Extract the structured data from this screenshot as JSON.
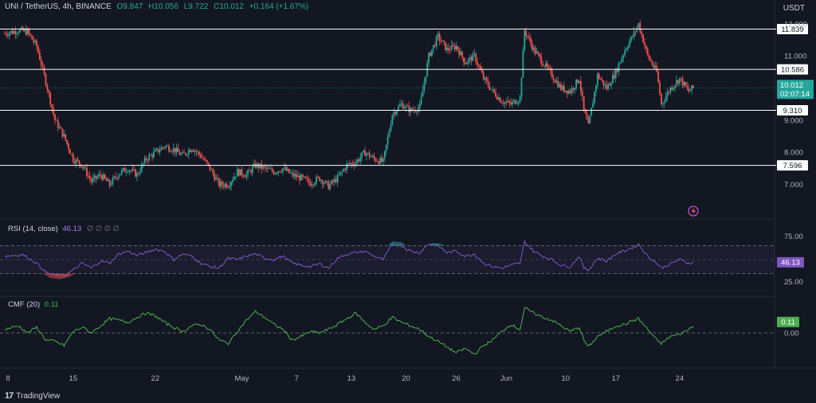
{
  "header": {
    "symbol": "UNI / TetherUS, 4h, BINANCE",
    "open": "O9.847",
    "high": "H10.056",
    "low": "L9.722",
    "close": "C10.012",
    "change": "+0.164 (+1.67%)"
  },
  "price_unit": "USDT",
  "current_price": "10.012",
  "countdown": "02:07:14",
  "brand": "TradingView",
  "colors": {
    "bg": "#131722",
    "up": "#26a69a",
    "down": "#ef5350",
    "rsi": "#7e57c2",
    "cmf": "#4caf50",
    "grid": "#2a2e39"
  },
  "rsi_panel": {
    "label": "RSI (14, close)",
    "value": "46.13",
    "settings": "∅ ∅ ∅ ∅",
    "ticks": [
      "75.00",
      "25.00"
    ],
    "value_badge": "46.13"
  },
  "cmf_panel": {
    "label": "CMF (20)",
    "value": "0.11",
    "ticks": [
      "0.00"
    ],
    "value_badge": "0.11"
  },
  "chart_data": {
    "type": "candlestick",
    "y_ticks": [
      "12.000",
      "11.000",
      "10.000",
      "9.000",
      "8.000",
      "7.000"
    ],
    "x_ticks": [
      "8",
      "15",
      "22",
      "May",
      "7",
      "13",
      "20",
      "26",
      "Jun",
      "10",
      "17",
      "24"
    ],
    "levels": [
      {
        "label": "11.839",
        "value": 11.839
      },
      {
        "label": "10.586",
        "value": 10.586
      },
      {
        "label": "9.310",
        "value": 9.31
      },
      {
        "label": "7.596",
        "value": 7.596
      }
    ],
    "ylim": [
      6.0,
      12.2
    ],
    "price_path": [
      [
        0,
        11.7
      ],
      [
        3,
        11.8
      ],
      [
        5,
        11.75
      ],
      [
        7,
        11.3
      ],
      [
        9,
        10.2
      ],
      [
        11,
        9.0
      ],
      [
        13,
        8.5
      ],
      [
        15,
        7.8
      ],
      [
        17,
        7.6
      ],
      [
        19,
        7.1
      ],
      [
        21,
        7.3
      ],
      [
        23,
        7.0
      ],
      [
        25,
        7.35
      ],
      [
        27,
        7.5
      ],
      [
        29,
        7.3
      ],
      [
        31,
        7.8
      ],
      [
        33,
        8.0
      ],
      [
        35,
        8.2
      ],
      [
        37,
        8.1
      ],
      [
        39,
        7.9
      ],
      [
        41,
        8.15
      ],
      [
        43,
        7.9
      ],
      [
        45,
        7.5
      ],
      [
        47,
        7.0
      ],
      [
        49,
        7.0
      ],
      [
        51,
        7.4
      ],
      [
        53,
        7.3
      ],
      [
        55,
        7.6
      ],
      [
        57,
        7.5
      ],
      [
        59,
        7.4
      ],
      [
        61,
        7.5
      ],
      [
        63,
        7.3
      ],
      [
        65,
        7.2
      ],
      [
        67,
        7.05
      ],
      [
        69,
        7.2
      ],
      [
        71,
        6.95
      ],
      [
        73,
        7.2
      ],
      [
        75,
        7.6
      ],
      [
        77,
        7.7
      ],
      [
        79,
        8.0
      ],
      [
        81,
        7.8
      ],
      [
        83,
        7.7
      ],
      [
        85,
        9.2
      ],
      [
        87,
        9.5
      ],
      [
        89,
        9.3
      ],
      [
        91,
        9.4
      ],
      [
        93,
        11.0
      ],
      [
        95,
        11.6
      ],
      [
        97,
        11.2
      ],
      [
        99,
        11.3
      ],
      [
        101,
        10.8
      ],
      [
        103,
        11.0
      ],
      [
        105,
        10.3
      ],
      [
        107,
        9.9
      ],
      [
        109,
        9.6
      ],
      [
        111,
        9.5
      ],
      [
        113,
        9.7
      ],
      [
        114,
        11.8
      ],
      [
        116,
        11.2
      ],
      [
        118,
        10.8
      ],
      [
        120,
        10.4
      ],
      [
        122,
        10.0
      ],
      [
        124,
        9.9
      ],
      [
        126,
        10.3
      ],
      [
        127,
        9.3
      ],
      [
        128,
        8.8
      ],
      [
        130,
        10.4
      ],
      [
        132,
        10.0
      ],
      [
        134,
        10.5
      ],
      [
        136,
        11.2
      ],
      [
        138,
        11.7
      ],
      [
        139,
        12.0
      ],
      [
        141,
        11.0
      ],
      [
        143,
        10.5
      ],
      [
        144,
        9.5
      ],
      [
        146,
        10.0
      ],
      [
        148,
        10.3
      ],
      [
        150,
        9.9
      ],
      [
        151,
        10.012
      ]
    ],
    "rsi_path": [
      [
        0,
        55
      ],
      [
        4,
        57
      ],
      [
        7,
        45
      ],
      [
        9,
        32
      ],
      [
        11,
        28
      ],
      [
        13,
        27
      ],
      [
        15,
        35
      ],
      [
        17,
        45
      ],
      [
        19,
        38
      ],
      [
        21,
        48
      ],
      [
        23,
        45
      ],
      [
        25,
        58
      ],
      [
        27,
        62
      ],
      [
        29,
        56
      ],
      [
        31,
        60
      ],
      [
        33,
        65
      ],
      [
        35,
        62
      ],
      [
        37,
        50
      ],
      [
        39,
        58
      ],
      [
        41,
        55
      ],
      [
        43,
        45
      ],
      [
        45,
        40
      ],
      [
        47,
        38
      ],
      [
        49,
        52
      ],
      [
        51,
        50
      ],
      [
        53,
        55
      ],
      [
        55,
        58
      ],
      [
        57,
        52
      ],
      [
        59,
        50
      ],
      [
        61,
        55
      ],
      [
        63,
        45
      ],
      [
        65,
        42
      ],
      [
        67,
        40
      ],
      [
        69,
        44
      ],
      [
        71,
        38
      ],
      [
        73,
        52
      ],
      [
        75,
        58
      ],
      [
        77,
        60
      ],
      [
        79,
        62
      ],
      [
        81,
        55
      ],
      [
        83,
        50
      ],
      [
        85,
        72
      ],
      [
        87,
        70
      ],
      [
        89,
        62
      ],
      [
        91,
        60
      ],
      [
        93,
        73
      ],
      [
        95,
        70
      ],
      [
        97,
        60
      ],
      [
        99,
        62
      ],
      [
        101,
        55
      ],
      [
        103,
        58
      ],
      [
        105,
        45
      ],
      [
        107,
        40
      ],
      [
        109,
        38
      ],
      [
        111,
        42
      ],
      [
        113,
        45
      ],
      [
        114,
        76
      ],
      [
        116,
        62
      ],
      [
        118,
        55
      ],
      [
        120,
        50
      ],
      [
        122,
        42
      ],
      [
        124,
        40
      ],
      [
        126,
        55
      ],
      [
        127,
        38
      ],
      [
        128,
        35
      ],
      [
        130,
        52
      ],
      [
        132,
        48
      ],
      [
        134,
        58
      ],
      [
        136,
        63
      ],
      [
        138,
        68
      ],
      [
        139,
        72
      ],
      [
        141,
        55
      ],
      [
        143,
        45
      ],
      [
        144,
        38
      ],
      [
        146,
        44
      ],
      [
        148,
        50
      ],
      [
        150,
        45
      ],
      [
        151,
        46.13
      ]
    ],
    "cmf_path": [
      [
        0,
        0.05
      ],
      [
        3,
        0.1
      ],
      [
        5,
        0.0
      ],
      [
        7,
        0.08
      ],
      [
        9,
        -0.1
      ],
      [
        11,
        -0.12
      ],
      [
        13,
        -0.18
      ],
      [
        15,
        0.02
      ],
      [
        17,
        0.08
      ],
      [
        19,
        0.0
      ],
      [
        21,
        0.1
      ],
      [
        23,
        0.2
      ],
      [
        25,
        0.18
      ],
      [
        27,
        0.15
      ],
      [
        29,
        0.22
      ],
      [
        31,
        0.28
      ],
      [
        33,
        0.24
      ],
      [
        35,
        0.15
      ],
      [
        37,
        0.08
      ],
      [
        39,
        0.02
      ],
      [
        41,
        0.1
      ],
      [
        43,
        0.12
      ],
      [
        45,
        0.05
      ],
      [
        47,
        -0.1
      ],
      [
        49,
        -0.15
      ],
      [
        51,
        0.02
      ],
      [
        53,
        0.18
      ],
      [
        55,
        0.3
      ],
      [
        57,
        0.22
      ],
      [
        59,
        0.12
      ],
      [
        61,
        0.05
      ],
      [
        63,
        -0.1
      ],
      [
        65,
        -0.05
      ],
      [
        67,
        0.02
      ],
      [
        69,
        0.0
      ],
      [
        71,
        0.05
      ],
      [
        73,
        0.12
      ],
      [
        75,
        0.2
      ],
      [
        77,
        0.28
      ],
      [
        79,
        0.15
      ],
      [
        81,
        0.05
      ],
      [
        83,
        0.1
      ],
      [
        85,
        0.22
      ],
      [
        87,
        0.15
      ],
      [
        89,
        0.1
      ],
      [
        91,
        0.05
      ],
      [
        93,
        -0.05
      ],
      [
        95,
        -0.12
      ],
      [
        97,
        -0.2
      ],
      [
        99,
        -0.28
      ],
      [
        101,
        -0.22
      ],
      [
        103,
        -0.3
      ],
      [
        105,
        -0.18
      ],
      [
        107,
        -0.1
      ],
      [
        109,
        0.02
      ],
      [
        111,
        0.12
      ],
      [
        113,
        0.05
      ],
      [
        114,
        0.35
      ],
      [
        116,
        0.28
      ],
      [
        118,
        0.22
      ],
      [
        120,
        0.18
      ],
      [
        122,
        0.1
      ],
      [
        124,
        0.02
      ],
      [
        126,
        0.08
      ],
      [
        127,
        -0.1
      ],
      [
        128,
        -0.2
      ],
      [
        130,
        -0.05
      ],
      [
        132,
        0.02
      ],
      [
        134,
        0.1
      ],
      [
        136,
        0.12
      ],
      [
        138,
        0.18
      ],
      [
        139,
        0.2
      ],
      [
        141,
        0.05
      ],
      [
        143,
        -0.1
      ],
      [
        144,
        -0.15
      ],
      [
        146,
        -0.05
      ],
      [
        148,
        -0.02
      ],
      [
        150,
        0.05
      ],
      [
        151,
        0.11
      ]
    ]
  }
}
